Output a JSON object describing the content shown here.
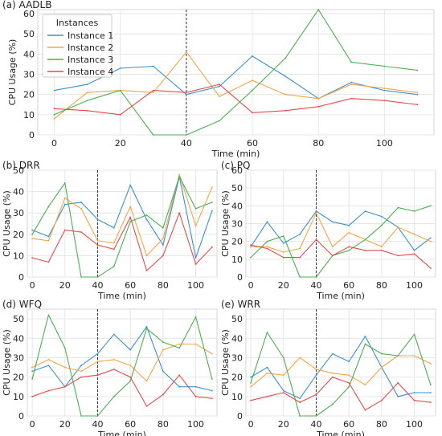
{
  "colors": {
    "series": [
      "#3b8fd0",
      "#f5a544",
      "#4caf50",
      "#e34a4a"
    ],
    "grid": "#e6e6e6",
    "axis": "#d5d5d5",
    "vline": "#333333"
  },
  "chart_data": [
    {
      "type": "line",
      "title": "(a) AADLB",
      "xlabel": "Time (min)",
      "ylabel": "CPU Usage (%)",
      "xlim": [
        -5,
        115
      ],
      "ylim": [
        0,
        62
      ],
      "xticks": [
        0,
        20,
        40,
        60,
        80,
        100
      ],
      "yticks": [
        0,
        10,
        20,
        30,
        40,
        50,
        60
      ],
      "grid": true,
      "vline_x": 40,
      "legend": {
        "title": "Instances",
        "position": "top-left"
      },
      "x": [
        0,
        10,
        20,
        30,
        40,
        50,
        60,
        70,
        80,
        90,
        100,
        110
      ],
      "series": [
        {
          "name": "Instance 1",
          "values": [
            22,
            25,
            33,
            34,
            20,
            24,
            39,
            29,
            18,
            26,
            22,
            20
          ]
        },
        {
          "name": "Instance 2",
          "values": [
            8,
            21,
            22,
            21,
            41,
            19,
            27,
            20,
            18,
            25,
            23,
            21
          ]
        },
        {
          "name": "Instance 3",
          "values": [
            10,
            17,
            22,
            0,
            0,
            7,
            22,
            38,
            62,
            36,
            34,
            32
          ]
        },
        {
          "name": "Instance 4",
          "values": [
            13,
            12,
            10,
            22,
            21,
            25,
            11,
            12,
            14,
            18,
            17,
            15
          ]
        }
      ]
    },
    {
      "type": "line",
      "title": "(b) DRR",
      "xlabel": "Time (min)",
      "ylabel": "CPU Usage (%)",
      "xlim": [
        -3,
        113
      ],
      "ylim": [
        0,
        50
      ],
      "xticks": [
        0,
        20,
        40,
        60,
        80,
        100
      ],
      "yticks": [
        0,
        10,
        20,
        30,
        40,
        50
      ],
      "grid": true,
      "vline_x": 40,
      "x": [
        0,
        10,
        20,
        30,
        40,
        50,
        60,
        70,
        80,
        90,
        100,
        110
      ],
      "series": [
        {
          "name": "Instance 1",
          "values": [
            22,
            19,
            34,
            35,
            27,
            23,
            43,
            27,
            15,
            47,
            9,
            31
          ]
        },
        {
          "name": "Instance 2",
          "values": [
            18,
            17,
            37,
            32,
            17,
            16,
            33,
            10,
            18,
            48,
            24,
            42
          ]
        },
        {
          "name": "Instance 3",
          "values": [
            20,
            33,
            44,
            0,
            0,
            5,
            26,
            29,
            23,
            47,
            32,
            35
          ]
        },
        {
          "name": "Instance 4",
          "values": [
            9,
            7,
            22,
            21,
            15,
            13,
            28,
            3,
            10,
            30,
            6,
            14
          ]
        }
      ]
    },
    {
      "type": "line",
      "title": "(c) PQ",
      "xlabel": "Time (min)",
      "ylabel": "CPU Usage (%)",
      "xlim": [
        -3,
        113
      ],
      "ylim": [
        0,
        60
      ],
      "xticks": [
        0,
        20,
        40,
        60,
        80,
        100
      ],
      "yticks": [
        0,
        10,
        20,
        30,
        40,
        50,
        60
      ],
      "grid": true,
      "vline_x": 40,
      "x": [
        0,
        10,
        20,
        30,
        40,
        50,
        60,
        70,
        80,
        90,
        100,
        110
      ],
      "series": [
        {
          "name": "Instance 1",
          "values": [
            17,
            31,
            19,
            24,
            37,
            31,
            29,
            37,
            34,
            28,
            15,
            22
          ]
        },
        {
          "name": "Instance 2",
          "values": [
            17,
            17,
            14,
            16,
            36,
            17,
            25,
            21,
            17,
            28,
            24,
            20
          ]
        },
        {
          "name": "Instance 3",
          "values": [
            11,
            20,
            23,
            0,
            0,
            12,
            15,
            21,
            29,
            39,
            37,
            40
          ]
        },
        {
          "name": "Instance 4",
          "values": [
            18,
            16,
            11,
            11,
            21,
            12,
            17,
            15,
            15,
            12,
            13,
            5
          ]
        }
      ]
    },
    {
      "type": "line",
      "title": "(d) WFQ",
      "xlabel": "Time (min)",
      "ylabel": "CPU Usage (%)",
      "xlim": [
        -3,
        113
      ],
      "ylim": [
        0,
        55
      ],
      "xticks": [
        0,
        20,
        40,
        60,
        80,
        100
      ],
      "yticks": [
        0,
        10,
        20,
        30,
        40,
        50
      ],
      "grid": true,
      "vline_x": 40,
      "x": [
        0,
        10,
        20,
        30,
        40,
        50,
        60,
        70,
        80,
        90,
        100,
        110
      ],
      "series": [
        {
          "name": "Instance 1",
          "values": [
            23,
            26,
            15,
            26,
            32,
            42,
            34,
            46,
            23,
            15,
            15,
            13
          ]
        },
        {
          "name": "Instance 2",
          "values": [
            25,
            29,
            25,
            23,
            28,
            29,
            26,
            18,
            34,
            37,
            37,
            32
          ]
        },
        {
          "name": "Instance 3",
          "values": [
            19,
            52,
            35,
            0,
            0,
            10,
            18,
            45,
            38,
            35,
            51,
            19
          ]
        },
        {
          "name": "Instance 4",
          "values": [
            10,
            13,
            15,
            20,
            21,
            24,
            20,
            5,
            11,
            21,
            10,
            9
          ]
        }
      ]
    },
    {
      "type": "line",
      "title": "(e) WRR",
      "xlabel": "Time (min)",
      "ylabel": "CPU Usage (%)",
      "xlim": [
        -3,
        113
      ],
      "ylim": [
        0,
        55
      ],
      "xticks": [
        0,
        20,
        40,
        60,
        80,
        100
      ],
      "yticks": [
        0,
        10,
        20,
        30,
        40,
        50
      ],
      "grid": true,
      "vline_x": 40,
      "x": [
        0,
        10,
        20,
        30,
        40,
        50,
        60,
        70,
        80,
        90,
        100,
        110
      ],
      "series": [
        {
          "name": "Instance 1",
          "values": [
            20,
            25,
            13,
            9,
            21,
            32,
            28,
            41,
            25,
            10,
            12,
            12
          ]
        },
        {
          "name": "Instance 2",
          "values": [
            15,
            22,
            21,
            30,
            24,
            22,
            21,
            16,
            25,
            31,
            31,
            27
          ]
        },
        {
          "name": "Instance 3",
          "values": [
            17,
            43,
            30,
            0,
            0,
            6,
            15,
            37,
            32,
            31,
            42,
            16
          ]
        },
        {
          "name": "Instance 4",
          "values": [
            8,
            10,
            12,
            7,
            11,
            20,
            17,
            3,
            8,
            17,
            8,
            7
          ]
        }
      ]
    }
  ]
}
